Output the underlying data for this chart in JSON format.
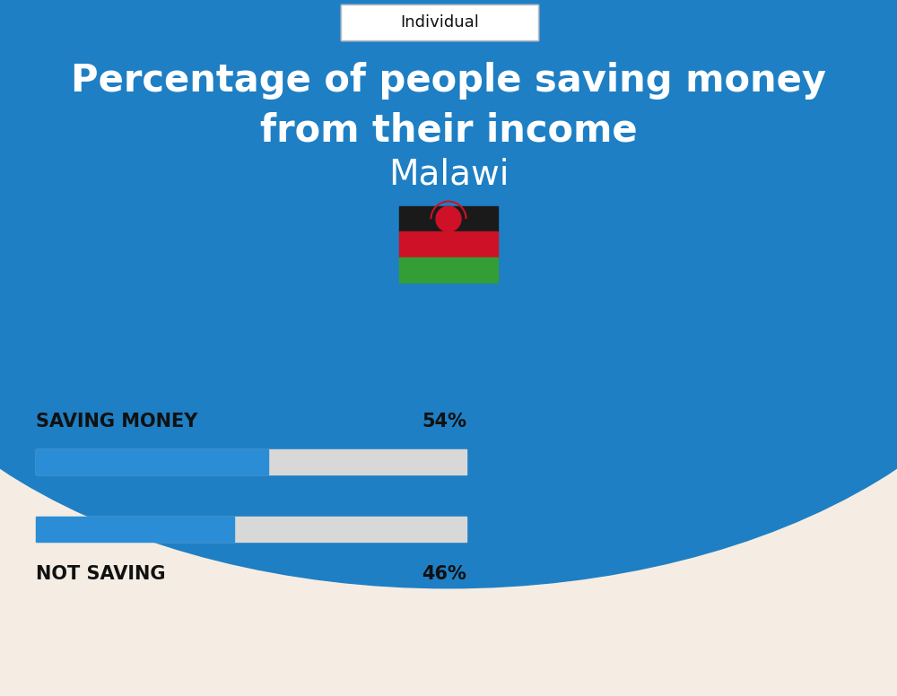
{
  "title_line1": "Percentage of people saving money",
  "title_line2": "from their income",
  "country": "Malawi",
  "tab_label": "Individual",
  "bar1_label": "SAVING MONEY",
  "bar1_value": 54,
  "bar1_pct": "54%",
  "bar2_label": "NOT SAVING",
  "bar2_value": 46,
  "bar2_pct": "46%",
  "bar_filled_color": "#2B8DD6",
  "bar_empty_color": "#D8D8D8",
  "background_top": "#1E7FC4",
  "background_bottom": "#F5EDE3",
  "title_color": "#FFFFFF",
  "label_color": "#111111",
  "tab_bg": "#FFFFFF",
  "tab_border": "#BBBBBB",
  "flag_black": "#1a1a1a",
  "flag_red": "#CE1126",
  "flag_green": "#339E35",
  "fig_width": 10.0,
  "fig_height": 7.76
}
